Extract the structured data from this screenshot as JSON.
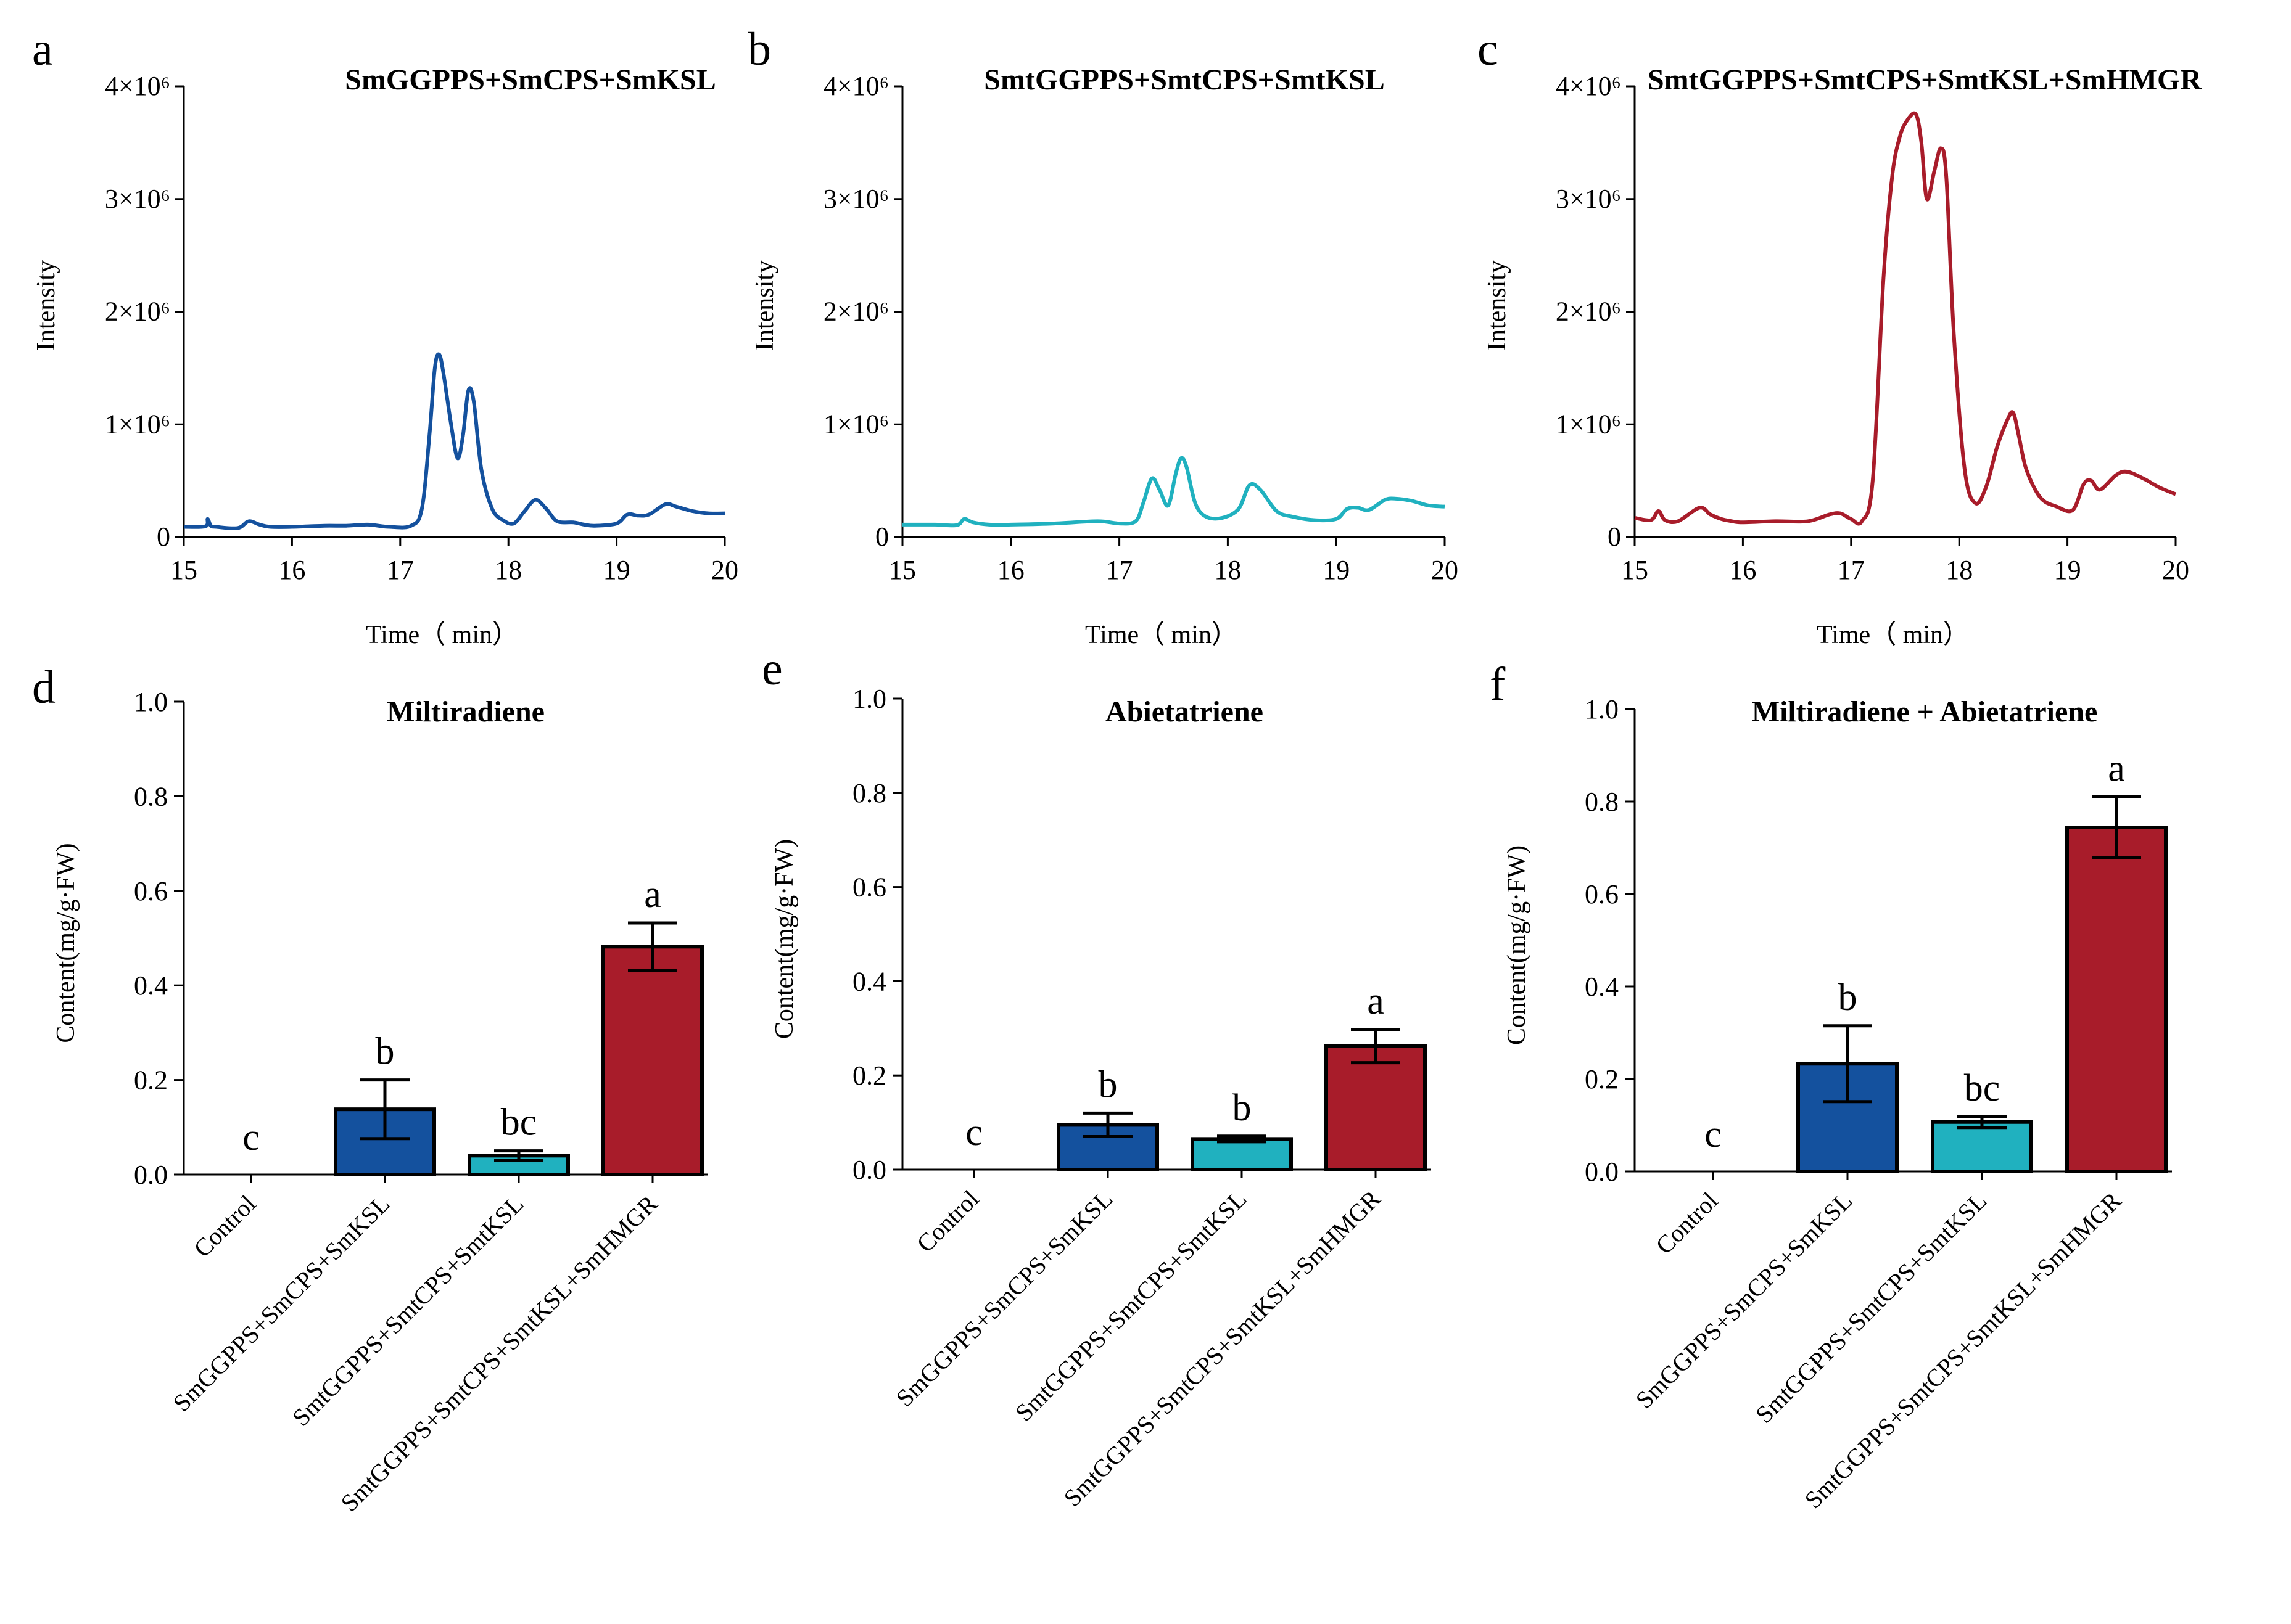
{
  "figure": {
    "colors": {
      "dark_blue": "#14519e",
      "teal": "#20b1bf",
      "red": "#a81c2a",
      "axis": "#000000"
    },
    "panels_chromatogram_axis": {
      "xlabel": "Time（ min）",
      "ylabel": "Intensity",
      "y_ticks": [
        "0",
        "1×10⁶",
        "2×10⁶",
        "3×10⁶",
        "4×10⁶"
      ],
      "x_ticks": [
        "15",
        "16",
        "17",
        "18",
        "19",
        "20"
      ]
    },
    "panels_bar_axis": {
      "ylabel": "Content(mg/g·FW)",
      "y_ticks": [
        "0.0",
        "0.2",
        "0.4",
        "0.6",
        "0.8",
        "1.0"
      ],
      "categories": [
        "Control",
        "SmGGPPS+SmCPS+SmKSL",
        "SmtGGPPS+SmtCPS+SmtKSL",
        "SmtGGPPS+SmtCPS+SmtKSL+SmHMGR"
      ]
    }
  },
  "chart_data": [
    {
      "panel": "a",
      "type": "line",
      "title": "SmGGPPS+SmCPS+SmKSL",
      "xlabel": "Time（ min）",
      "ylabel": "Intensity",
      "xlim": [
        15,
        20
      ],
      "ylim": [
        0,
        4000000
      ],
      "color": "#14519e",
      "x": [
        15.0,
        15.2,
        15.22,
        15.25,
        15.3,
        15.5,
        15.6,
        15.7,
        15.8,
        16.0,
        16.3,
        16.5,
        16.7,
        16.9,
        17.1,
        17.2,
        17.27,
        17.32,
        17.36,
        17.4,
        17.47,
        17.53,
        17.58,
        17.63,
        17.68,
        17.75,
        17.85,
        17.95,
        18.05,
        18.15,
        18.25,
        18.35,
        18.45,
        18.6,
        18.7,
        18.8,
        19.0,
        19.1,
        19.2,
        19.3,
        19.45,
        19.55,
        19.7,
        19.85,
        20.0
      ],
      "y": [
        90000,
        95000,
        160000,
        100000,
        90000,
        80000,
        140000,
        110000,
        90000,
        90000,
        100000,
        100000,
        110000,
        90000,
        100000,
        250000,
        900000,
        1500000,
        1620000,
        1450000,
        1000000,
        700000,
        900000,
        1300000,
        1200000,
        600000,
        250000,
        150000,
        120000,
        230000,
        330000,
        250000,
        140000,
        130000,
        110000,
        100000,
        120000,
        200000,
        190000,
        200000,
        290000,
        270000,
        230000,
        210000,
        210000
      ]
    },
    {
      "panel": "b",
      "type": "line",
      "title": "SmtGGPPS+SmtCPS+SmtKSL",
      "xlabel": "Time（ min）",
      "ylabel": "Intensity",
      "xlim": [
        15,
        20
      ],
      "ylim": [
        0,
        4000000
      ],
      "color": "#20b1bf",
      "x": [
        15.0,
        15.3,
        15.5,
        15.57,
        15.65,
        15.8,
        16.0,
        16.4,
        16.8,
        17.0,
        17.15,
        17.22,
        17.3,
        17.37,
        17.45,
        17.52,
        17.57,
        17.62,
        17.7,
        17.8,
        17.95,
        18.1,
        18.2,
        18.3,
        18.45,
        18.6,
        18.8,
        19.0,
        19.1,
        19.2,
        19.3,
        19.45,
        19.55,
        19.7,
        19.85,
        20.0
      ],
      "y": [
        110000,
        110000,
        105000,
        160000,
        130000,
        110000,
        110000,
        120000,
        140000,
        120000,
        140000,
        300000,
        520000,
        420000,
        280000,
        560000,
        700000,
        620000,
        300000,
        180000,
        170000,
        250000,
        460000,
        420000,
        230000,
        180000,
        150000,
        160000,
        250000,
        260000,
        240000,
        330000,
        340000,
        320000,
        280000,
        270000
      ]
    },
    {
      "panel": "c",
      "type": "line",
      "title": "SmtGGPPS+SmtCPS+SmtKSL+SmHMGR",
      "xlabel": "Time（ min）",
      "ylabel": "Intensity",
      "xlim": [
        15,
        20
      ],
      "ylim": [
        0,
        4000000
      ],
      "color": "#a81c2a",
      "x": [
        15.0,
        15.15,
        15.22,
        15.28,
        15.4,
        15.6,
        15.7,
        15.8,
        15.9,
        16.0,
        16.3,
        16.6,
        16.8,
        16.9,
        17.0,
        17.1,
        17.2,
        17.3,
        17.38,
        17.45,
        17.52,
        17.6,
        17.65,
        17.7,
        17.77,
        17.83,
        17.88,
        17.95,
        18.05,
        18.15,
        18.25,
        18.35,
        18.45,
        18.5,
        18.55,
        18.62,
        18.75,
        18.9,
        19.05,
        19.15,
        19.22,
        19.3,
        19.45,
        19.55,
        19.7,
        19.85,
        20.0
      ],
      "y": [
        170000,
        150000,
        230000,
        150000,
        140000,
        260000,
        200000,
        160000,
        140000,
        130000,
        140000,
        140000,
        200000,
        210000,
        160000,
        140000,
        500000,
        2300000,
        3200000,
        3550000,
        3700000,
        3750000,
        3500000,
        3000000,
        3250000,
        3450000,
        3200000,
        1800000,
        600000,
        300000,
        450000,
        800000,
        1050000,
        1100000,
        900000,
        600000,
        350000,
        270000,
        240000,
        470000,
        500000,
        420000,
        550000,
        580000,
        520000,
        440000,
        380000
      ]
    },
    {
      "panel": "d",
      "type": "bar",
      "title": "Miltiradiene",
      "xlabel": "",
      "ylabel": "Content(mg/g·FW)",
      "ylim": [
        0,
        1.0
      ],
      "categories": [
        "Control",
        "SmGGPPS+SmCPS+SmKSL",
        "SmtGGPPS+SmtCPS+SmtKSL",
        "SmtGGPPS+SmtCPS+SmtKSL+SmHMGR"
      ],
      "values": [
        0,
        0.138,
        0.04,
        0.482
      ],
      "errors": [
        0,
        0.062,
        0.01,
        0.05
      ],
      "significance": [
        "c",
        "b",
        "bc",
        "a"
      ],
      "colors": [
        "#14519e",
        "#14519e",
        "#20b1bf",
        "#a81c2a"
      ]
    },
    {
      "panel": "e",
      "type": "bar",
      "title": "Abietatriene",
      "xlabel": "",
      "ylabel": "Content(mg/g·FW)",
      "ylim": [
        0,
        1.0
      ],
      "categories": [
        "Control",
        "SmGGPPS+SmCPS+SmKSL",
        "SmtGGPPS+SmtCPS+SmtKSL",
        "SmtGGPPS+SmtCPS+SmtKSL+SmHMGR"
      ],
      "values": [
        0,
        0.095,
        0.065,
        0.262
      ],
      "errors": [
        0,
        0.025,
        0.006,
        0.035
      ],
      "significance": [
        "c",
        "b",
        "b",
        "a"
      ],
      "colors": [
        "#14519e",
        "#14519e",
        "#20b1bf",
        "#a81c2a"
      ]
    },
    {
      "panel": "f",
      "type": "bar",
      "title": "Miltiradiene + Abietatriene",
      "xlabel": "",
      "ylabel": "Content(mg/g·FW)",
      "ylim": [
        0,
        1.0
      ],
      "categories": [
        "Control",
        "SmGGPPS+SmCPS+SmKSL",
        "SmtGGPPS+SmtCPS+SmtKSL",
        "SmtGGPPS+SmtCPS+SmtKSL+SmHMGR"
      ],
      "values": [
        0,
        0.233,
        0.107,
        0.744
      ],
      "errors": [
        0,
        0.082,
        0.012,
        0.066
      ],
      "significance": [
        "c",
        "b",
        "bc",
        "a"
      ],
      "colors": [
        "#14519e",
        "#14519e",
        "#20b1bf",
        "#a81c2a"
      ]
    }
  ]
}
